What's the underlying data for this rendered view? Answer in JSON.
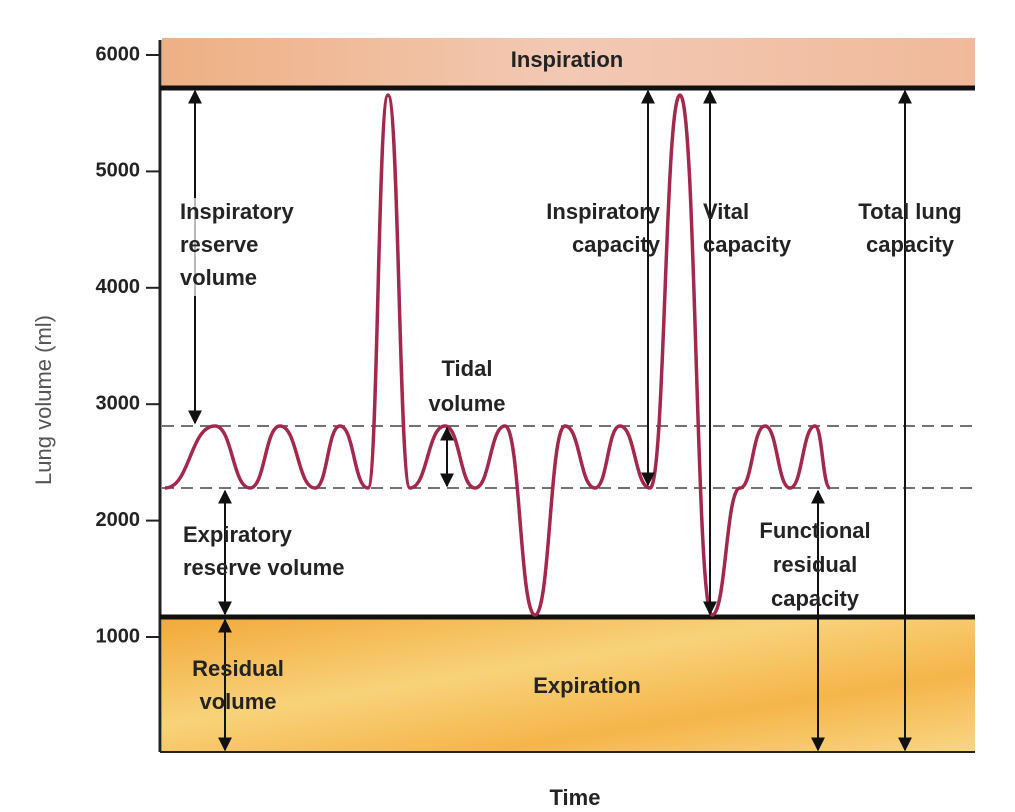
{
  "axis": {
    "y_label": "Lung volume (ml)",
    "x_label": "Time",
    "yticks": [
      1000,
      2000,
      3000,
      4000,
      5000,
      6000
    ]
  },
  "zones": {
    "top": "Inspiration",
    "bottom": "Expiration"
  },
  "labels": {
    "inspiratory_reserve_volume": [
      "Inspiratory",
      "reserve",
      "volume"
    ],
    "tidal_volume": [
      "Tidal",
      "volume"
    ],
    "inspiratory_capacity": [
      "Inspiratory",
      "capacity"
    ],
    "vital_capacity": [
      "Vital",
      "capacity"
    ],
    "total_lung_capacity": [
      "Total lung",
      "capacity"
    ],
    "expiratory_reserve_volume": [
      "Expiratory",
      "reserve volume"
    ],
    "functional_residual_capacity": [
      "Functional",
      "residual",
      "capacity"
    ],
    "residual_volume": [
      "Residual",
      "volume"
    ]
  }
}
